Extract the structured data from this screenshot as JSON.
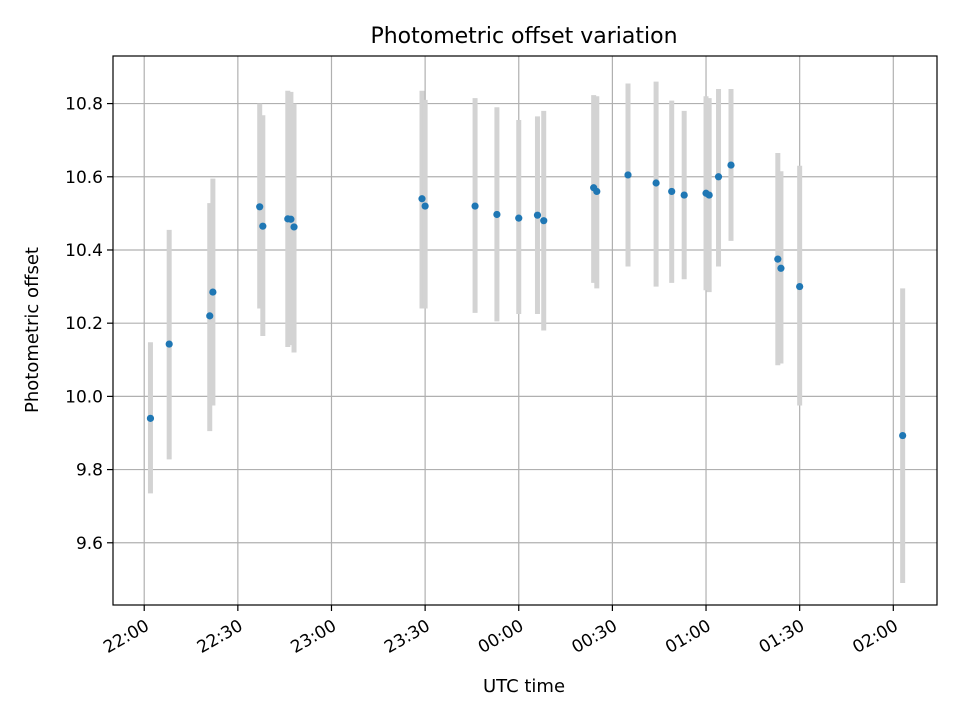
{
  "chart_data": {
    "type": "scatter",
    "title": "Photometric offset variation",
    "xlabel": "UTC time",
    "ylabel": "Photometric offset",
    "x_tick_labels": [
      "22:00",
      "22:30",
      "23:00",
      "23:30",
      "00:00",
      "00:30",
      "01:00",
      "01:30",
      "02:00"
    ],
    "x_ticks": [
      "22:00",
      "22:30",
      "23:00",
      "23:30",
      "24:00",
      "24:30",
      "25:00",
      "25:30",
      "26:00"
    ],
    "xlim": [
      "21:50",
      "26:14"
    ],
    "y_tick_labels": [
      "9.6",
      "9.8",
      "10.0",
      "10.2",
      "10.4",
      "10.6",
      "10.8"
    ],
    "y_ticks": [
      9.6,
      9.8,
      10.0,
      10.2,
      10.4,
      10.6,
      10.8
    ],
    "ylim": [
      9.43,
      10.93
    ],
    "grid": true,
    "errorbar_color": "#d3d3d3",
    "point_color": "#1f77b4",
    "points": [
      {
        "t": "22:02",
        "y": 9.94,
        "lo": 9.735,
        "hi": 10.148
      },
      {
        "t": "22:08",
        "y": 10.143,
        "lo": 9.828,
        "hi": 10.455
      },
      {
        "t": "22:21",
        "y": 10.22,
        "lo": 9.905,
        "hi": 10.528
      },
      {
        "t": "22:22",
        "y": 10.285,
        "lo": 9.975,
        "hi": 10.595
      },
      {
        "t": "22:37",
        "y": 10.518,
        "lo": 10.24,
        "hi": 10.8
      },
      {
        "t": "22:38",
        "y": 10.465,
        "lo": 10.165,
        "hi": 10.768
      },
      {
        "t": "22:46",
        "y": 10.485,
        "lo": 10.135,
        "hi": 10.835
      },
      {
        "t": "22:47",
        "y": 10.484,
        "lo": 10.14,
        "hi": 10.832
      },
      {
        "t": "22:48",
        "y": 10.463,
        "lo": 10.12,
        "hi": 10.8
      },
      {
        "t": "23:29",
        "y": 10.54,
        "lo": 10.24,
        "hi": 10.835
      },
      {
        "t": "23:30",
        "y": 10.52,
        "lo": 10.24,
        "hi": 10.81
      },
      {
        "t": "23:46",
        "y": 10.52,
        "lo": 10.228,
        "hi": 10.815
      },
      {
        "t": "23:53",
        "y": 10.497,
        "lo": 10.205,
        "hi": 10.79
      },
      {
        "t": "24:00",
        "y": 10.487,
        "lo": 10.225,
        "hi": 10.755
      },
      {
        "t": "24:06",
        "y": 10.495,
        "lo": 10.225,
        "hi": 10.765
      },
      {
        "t": "24:08",
        "y": 10.48,
        "lo": 10.18,
        "hi": 10.78
      },
      {
        "t": "24:24",
        "y": 10.57,
        "lo": 10.31,
        "hi": 10.823
      },
      {
        "t": "24:25",
        "y": 10.56,
        "lo": 10.295,
        "hi": 10.82
      },
      {
        "t": "24:35",
        "y": 10.605,
        "lo": 10.355,
        "hi": 10.855
      },
      {
        "t": "24:44",
        "y": 10.583,
        "lo": 10.3,
        "hi": 10.86
      },
      {
        "t": "24:49",
        "y": 10.56,
        "lo": 10.31,
        "hi": 10.808
      },
      {
        "t": "24:53",
        "y": 10.55,
        "lo": 10.32,
        "hi": 10.78
      },
      {
        "t": "25:00",
        "y": 10.555,
        "lo": 10.29,
        "hi": 10.82
      },
      {
        "t": "25:01",
        "y": 10.55,
        "lo": 10.285,
        "hi": 10.815
      },
      {
        "t": "25:04",
        "y": 10.6,
        "lo": 10.355,
        "hi": 10.84
      },
      {
        "t": "25:08",
        "y": 10.632,
        "lo": 10.425,
        "hi": 10.84
      },
      {
        "t": "25:23",
        "y": 10.375,
        "lo": 10.085,
        "hi": 10.665
      },
      {
        "t": "25:24",
        "y": 10.35,
        "lo": 10.09,
        "hi": 10.615
      },
      {
        "t": "25:30",
        "y": 10.3,
        "lo": 9.975,
        "hi": 10.63
      },
      {
        "t": "26:03",
        "y": 9.893,
        "lo": 9.49,
        "hi": 10.295
      }
    ]
  }
}
